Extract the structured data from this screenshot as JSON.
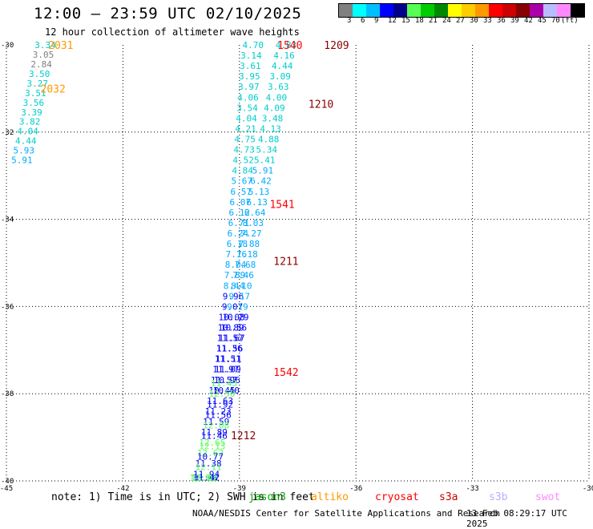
{
  "title": "12:00 — 23:59 UTC 02/10/2025",
  "subtitle": "12 hour collection of altimeter wave heights",
  "legend": {
    "colors": [
      "#808080",
      "#00ffff",
      "#00bfff",
      "#0000ff",
      "#00008b",
      "#55ff55",
      "#00cc00",
      "#008800",
      "#ffff00",
      "#ffcc00",
      "#ff9900",
      "#ff0000",
      "#cc0000",
      "#880000",
      "#aa00aa",
      "#bbbbff",
      "#ff88ff",
      "#000000"
    ],
    "labels": [
      "3",
      "6",
      "9",
      "12",
      "15",
      "18",
      "21",
      "24",
      "27",
      "30",
      "33",
      "36",
      "39",
      "42",
      "45",
      "70",
      "(ft)"
    ]
  },
  "note": "note: 1) Time is in UTC; 2) SWH is in feet",
  "missions": [
    {
      "name": "jason3",
      "color": "#00aa00"
    },
    {
      "name": "altiko",
      "color": "#ff9900"
    },
    {
      "name": "cryosat",
      "color": "#ff0000"
    },
    {
      "name": "s3a",
      "color": "#cc0000"
    },
    {
      "name": "s3b",
      "color": "#bbaaff"
    },
    {
      "name": "swot",
      "color": "#ff88ff"
    }
  ],
  "footer_left": "NOAA/NESDIS Center for Satellite Applications and Research",
  "footer_right": "13 Feb 08:29:17 UTC 2025",
  "chart_data": {
    "type": "scatter",
    "xlim": [
      -45,
      -30
    ],
    "ylim": [
      -40,
      -30
    ],
    "x_ticks": [
      "-45",
      "-42",
      "-39",
      "-36",
      "-33",
      "-30"
    ],
    "y_ticks": [
      "-30",
      "-32",
      "-34",
      "-36",
      "-38",
      "-40"
    ],
    "grid": true,
    "time_labels": [
      {
        "x": -43.6,
        "y": -30.0,
        "text": "2031",
        "color": "#ff9900"
      },
      {
        "x": -43.8,
        "y": -31.0,
        "text": "2032",
        "color": "#ff9900"
      },
      {
        "x": -37.7,
        "y": -30.0,
        "text": "1540",
        "color": "#ff0000"
      },
      {
        "x": -36.5,
        "y": -30.0,
        "text": "1209",
        "color": "#880000"
      },
      {
        "x": -36.9,
        "y": -31.35,
        "text": "1210",
        "color": "#880000"
      },
      {
        "x": -37.9,
        "y": -33.65,
        "text": "1541",
        "color": "#ff0000"
      },
      {
        "x": -37.8,
        "y": -34.95,
        "text": "1211",
        "color": "#880000"
      },
      {
        "x": -37.8,
        "y": -37.5,
        "text": "1542",
        "color": "#ff0000"
      },
      {
        "x": -38.9,
        "y": -38.95,
        "text": "1212",
        "color": "#880000"
      }
    ],
    "series": [
      {
        "points": [
          {
            "x": -44.0,
            "y": -30.0,
            "v": "3.34",
            "color": "#00cccc"
          },
          {
            "x": -44.05,
            "y": -30.22,
            "v": "3.05",
            "color": "#808080"
          },
          {
            "x": -44.1,
            "y": -30.44,
            "v": "2.84",
            "color": "#808080"
          },
          {
            "x": -44.15,
            "y": -30.66,
            "v": "3.50",
            "color": "#00cccc"
          },
          {
            "x": -44.2,
            "y": -30.88,
            "v": "3.27",
            "color": "#00cccc"
          },
          {
            "x": -44.25,
            "y": -31.1,
            "v": "3.51",
            "color": "#00cccc"
          },
          {
            "x": -44.3,
            "y": -31.32,
            "v": "3.56",
            "color": "#00cccc"
          },
          {
            "x": -44.35,
            "y": -31.54,
            "v": "3.39",
            "color": "#00cccc"
          },
          {
            "x": -44.4,
            "y": -31.76,
            "v": "3.82",
            "color": "#00cccc"
          },
          {
            "x": -44.45,
            "y": -31.98,
            "v": "4.04",
            "color": "#00cccc"
          },
          {
            "x": -44.5,
            "y": -32.2,
            "v": "4.44",
            "color": "#00cccc"
          },
          {
            "x": -44.55,
            "y": -32.42,
            "v": "5.93",
            "color": "#00aaff"
          },
          {
            "x": -44.6,
            "y": -32.64,
            "v": "5.91",
            "color": "#00aaff"
          }
        ]
      },
      {
        "points": [
          {
            "x": -38.65,
            "y": -30.0,
            "v": "4.70",
            "color": "#00cccc"
          },
          {
            "x": -38.7,
            "y": -30.24,
            "v": "3.14",
            "color": "#00cccc"
          },
          {
            "x": -38.72,
            "y": -30.48,
            "v": "3.61",
            "color": "#00cccc"
          },
          {
            "x": -38.74,
            "y": -30.72,
            "v": "3.95",
            "color": "#00cccc"
          },
          {
            "x": -38.76,
            "y": -30.96,
            "v": "3.97",
            "color": "#00cccc"
          },
          {
            "x": -38.78,
            "y": -31.2,
            "v": "4.06",
            "color": "#00cccc"
          },
          {
            "x": -38.8,
            "y": -31.44,
            "v": "3.54",
            "color": "#00cccc"
          },
          {
            "x": -38.82,
            "y": -31.68,
            "v": "4.04",
            "color": "#00cccc"
          },
          {
            "x": -38.84,
            "y": -31.92,
            "v": "4.21",
            "color": "#00cccc"
          },
          {
            "x": -38.86,
            "y": -32.16,
            "v": "4.75",
            "color": "#00cccc"
          },
          {
            "x": -38.88,
            "y": -32.4,
            "v": "4.73",
            "color": "#00cccc"
          },
          {
            "x": -38.9,
            "y": -32.64,
            "v": "4.52",
            "color": "#00cccc"
          },
          {
            "x": -38.92,
            "y": -32.88,
            "v": "4.84",
            "color": "#00cccc"
          },
          {
            "x": -38.94,
            "y": -33.12,
            "v": "5.67",
            "color": "#00aaff"
          },
          {
            "x": -38.96,
            "y": -33.36,
            "v": "6.57",
            "color": "#00aaff"
          },
          {
            "x": -38.98,
            "y": -33.6,
            "v": "6.07",
            "color": "#00aaff"
          },
          {
            "x": -39.0,
            "y": -33.84,
            "v": "6.12",
            "color": "#00aaff"
          },
          {
            "x": -39.02,
            "y": -34.08,
            "v": "6.71",
            "color": "#00aaff"
          },
          {
            "x": -39.04,
            "y": -34.32,
            "v": "6.24",
            "color": "#00aaff"
          },
          {
            "x": -39.06,
            "y": -34.56,
            "v": "6.18",
            "color": "#00aaff"
          },
          {
            "x": -39.08,
            "y": -34.8,
            "v": "7.16",
            "color": "#00aaff"
          },
          {
            "x": -39.1,
            "y": -35.04,
            "v": "8.04",
            "color": "#00aaff"
          },
          {
            "x": -39.12,
            "y": -35.28,
            "v": "7.89",
            "color": "#00aaff"
          },
          {
            "x": -39.14,
            "y": -35.52,
            "v": "8.44",
            "color": "#00aaff"
          },
          {
            "x": -39.16,
            "y": -35.76,
            "v": "9.96",
            "color": "#0000ff"
          },
          {
            "x": -39.18,
            "y": -36.0,
            "v": "9.07",
            "color": "#0000ff"
          },
          {
            "x": -39.2,
            "y": -36.24,
            "v": "10.08",
            "color": "#0000ff"
          },
          {
            "x": -39.22,
            "y": -36.48,
            "v": "10.89",
            "color": "#0000ff"
          },
          {
            "x": -39.24,
            "y": -36.72,
            "v": "11.57",
            "color": "#0000ff"
          },
          {
            "x": -39.26,
            "y": -36.96,
            "v": "11.36",
            "color": "#0000ff"
          },
          {
            "x": -39.28,
            "y": -37.2,
            "v": "11.11",
            "color": "#0000ff"
          },
          {
            "x": -39.3,
            "y": -37.44,
            "v": "11.09",
            "color": "#0000ff"
          },
          {
            "x": -39.32,
            "y": -37.68,
            "v": "10.96",
            "color": "#0000ff"
          },
          {
            "x": -39.34,
            "y": -37.92,
            "v": "10.40",
            "color": "#0000ff"
          }
        ]
      },
      {
        "points": [
          {
            "x": -37.8,
            "y": -30.0,
            "v": "4.83",
            "color": "#00cccc"
          },
          {
            "x": -37.85,
            "y": -30.24,
            "v": "4.16",
            "color": "#00cccc"
          },
          {
            "x": -37.9,
            "y": -30.48,
            "v": "4.44",
            "color": "#00cccc"
          },
          {
            "x": -37.95,
            "y": -30.72,
            "v": "3.09",
            "color": "#00cccc"
          },
          {
            "x": -38.0,
            "y": -30.96,
            "v": "3.63",
            "color": "#00cccc"
          },
          {
            "x": -38.05,
            "y": -31.2,
            "v": "4.00",
            "color": "#00cccc"
          },
          {
            "x": -38.1,
            "y": -31.44,
            "v": "4.09",
            "color": "#00cccc"
          },
          {
            "x": -38.15,
            "y": -31.68,
            "v": "3.48",
            "color": "#00cccc"
          },
          {
            "x": -38.2,
            "y": -31.92,
            "v": "4.13",
            "color": "#00cccc"
          },
          {
            "x": -38.25,
            "y": -32.16,
            "v": "4.88",
            "color": "#00cccc"
          },
          {
            "x": -38.3,
            "y": -32.4,
            "v": "5.34",
            "color": "#00cccc"
          },
          {
            "x": -38.35,
            "y": -32.64,
            "v": "5.41",
            "color": "#00cccc"
          },
          {
            "x": -38.4,
            "y": -32.88,
            "v": "5.91",
            "color": "#00aaff"
          },
          {
            "x": -38.45,
            "y": -33.12,
            "v": "6.42",
            "color": "#00aaff"
          },
          {
            "x": -38.5,
            "y": -33.36,
            "v": "5.13",
            "color": "#00aaff"
          },
          {
            "x": -38.55,
            "y": -33.6,
            "v": "6.13",
            "color": "#00aaff"
          },
          {
            "x": -38.6,
            "y": -33.84,
            "v": "6.64",
            "color": "#00aaff"
          },
          {
            "x": -38.65,
            "y": -34.08,
            "v": "8.03",
            "color": "#00aaff"
          },
          {
            "x": -38.7,
            "y": -34.32,
            "v": "7.27",
            "color": "#00aaff"
          },
          {
            "x": -38.75,
            "y": -34.56,
            "v": "7.88",
            "color": "#00aaff"
          },
          {
            "x": -38.8,
            "y": -34.8,
            "v": "7.18",
            "color": "#00aaff"
          },
          {
            "x": -38.85,
            "y": -35.04,
            "v": "7.68",
            "color": "#00aaff"
          },
          {
            "x": -38.9,
            "y": -35.28,
            "v": "7.46",
            "color": "#00aaff"
          },
          {
            "x": -38.95,
            "y": -35.52,
            "v": "8.10",
            "color": "#00aaff"
          },
          {
            "x": -39.0,
            "y": -35.76,
            "v": "9.17",
            "color": "#00aaff"
          },
          {
            "x": -39.05,
            "y": -36.0,
            "v": "9.19",
            "color": "#00aaff"
          },
          {
            "x": -39.1,
            "y": -36.24,
            "v": "10.29",
            "color": "#0000ff"
          },
          {
            "x": -39.15,
            "y": -36.48,
            "v": "10.56",
            "color": "#0000ff"
          },
          {
            "x": -39.2,
            "y": -36.72,
            "v": "11.67",
            "color": "#0000ff"
          },
          {
            "x": -39.25,
            "y": -36.96,
            "v": "11.56",
            "color": "#0000ff"
          },
          {
            "x": -39.3,
            "y": -37.2,
            "v": "11.51",
            "color": "#0000ff"
          },
          {
            "x": -39.35,
            "y": -37.44,
            "v": "11.97",
            "color": "#0000ff"
          },
          {
            "x": -39.4,
            "y": -37.68,
            "v": "11.57",
            "color": "#0000ff"
          },
          {
            "x": -39.45,
            "y": -37.92,
            "v": "10.45",
            "color": "#0000ff"
          },
          {
            "x": -39.5,
            "y": -38.16,
            "v": "11.63",
            "color": "#0000ff"
          },
          {
            "x": -39.55,
            "y": -38.4,
            "v": "11.23",
            "color": "#0000ff"
          },
          {
            "x": -39.6,
            "y": -38.64,
            "v": "11.59",
            "color": "#0000ff"
          },
          {
            "x": -39.65,
            "y": -38.88,
            "v": "11.89",
            "color": "#0000ff"
          },
          {
            "x": -39.7,
            "y": -39.12,
            "v": "12.65",
            "color": "#55ff55"
          },
          {
            "x": -39.75,
            "y": -39.36,
            "v": "12.62",
            "color": "#55ff55"
          },
          {
            "x": -39.8,
            "y": -39.6,
            "v": "11.38",
            "color": "#0000ff"
          },
          {
            "x": -39.85,
            "y": -39.84,
            "v": "11.94",
            "color": "#0000ff"
          },
          {
            "x": -39.9,
            "y": -40.08,
            "v": "10.66",
            "color": "#0000ff"
          },
          {
            "x": -39.95,
            "y": -40.32,
            "v": "12.95",
            "color": "#55ff55"
          }
        ]
      },
      {
        "points": [
          {
            "x": -39.4,
            "y": -37.76,
            "v": "11.43",
            "color": "#55ff55"
          },
          {
            "x": -39.45,
            "y": -38.0,
            "v": "12.50",
            "color": "#55ff55"
          },
          {
            "x": -39.5,
            "y": -38.24,
            "v": "11.92",
            "color": "#0000ff"
          },
          {
            "x": -39.55,
            "y": -38.48,
            "v": "11.56",
            "color": "#0000ff"
          },
          {
            "x": -39.6,
            "y": -38.72,
            "v": "12.08",
            "color": "#55ff55"
          },
          {
            "x": -39.65,
            "y": -38.96,
            "v": "11.46",
            "color": "#0000ff"
          },
          {
            "x": -39.7,
            "y": -39.2,
            "v": "12.13",
            "color": "#55ff55"
          },
          {
            "x": -39.75,
            "y": -39.44,
            "v": "10.77",
            "color": "#0000ff"
          },
          {
            "x": -39.8,
            "y": -39.68,
            "v": "12.11",
            "color": "#55ff55"
          },
          {
            "x": -39.85,
            "y": -39.92,
            "v": "11.42",
            "color": "#0000ff"
          },
          {
            "x": -39.9,
            "y": -40.16,
            "v": "13.02",
            "color": "#55ff55"
          }
        ]
      }
    ]
  }
}
